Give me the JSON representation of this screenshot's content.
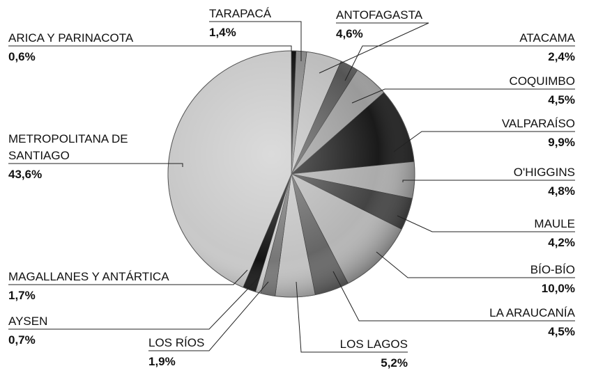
{
  "chart_data": {
    "type": "pie",
    "categories": [
      "ARICA Y PARINACOTA",
      "TARAPACÁ",
      "ANTOFAGASTA",
      "ATACAMA",
      "COQUIMBO",
      "VALPARAÍSO",
      "O'HIGGINS",
      "MAULE",
      "BÍO-BÍO",
      "LA ARAUCANÍA",
      "LOS LAGOS",
      "LOS RÍOS",
      "AYSEN",
      "MAGALLANES Y ANTÁRTICA",
      "METROPOLITANA DE SANTIAGO"
    ],
    "values": [
      0.6,
      1.4,
      4.6,
      2.4,
      4.5,
      9.9,
      4.8,
      4.2,
      10.0,
      4.5,
      5.2,
      1.9,
      0.7,
      1.7,
      43.6
    ],
    "value_labels": [
      "0,6%",
      "1,4%",
      "4,6%",
      "2,4%",
      "4,5%",
      "9,9%",
      "4,8%",
      "4,2%",
      "10,0%",
      "4,5%",
      "5,2%",
      "1,9%",
      "0,7%",
      "1,7%",
      "43,6%"
    ],
    "colors": [
      "#111111",
      "#8a8a8a",
      "#bdbdbd",
      "#555555",
      "#9a9a9a",
      "#1a1a1a",
      "#ababab",
      "#444444",
      "#b5b5b5",
      "#666666",
      "#c2c2c2",
      "#777777",
      "#cccccc",
      "#141414",
      "#c8c8c8"
    ]
  }
}
